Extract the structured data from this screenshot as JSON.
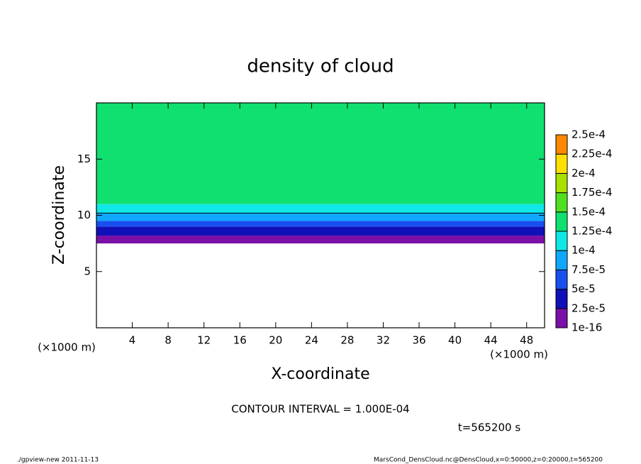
{
  "chart_data": {
    "type": "contour",
    "title": "density of cloud",
    "x_label": "X-coordinate",
    "y_label": "Z-coordinate",
    "x_unit": "(×1000 m)",
    "y_unit": "(×1000 m)",
    "xlim": [
      0,
      50
    ],
    "xticks": [
      4,
      8,
      12,
      16,
      20,
      24,
      28,
      32,
      36,
      40,
      44,
      48
    ],
    "ylim": [
      0,
      20
    ],
    "yticks": [
      5,
      10,
      15
    ],
    "field_z": [
      7.5,
      8.2,
      9,
      9.5,
      10.2,
      11
    ],
    "field_values": [
      1e-05,
      3e-05,
      6e-05,
      8.5e-05,
      0.00011,
      0.00014
    ],
    "contour_interval": 0.0001,
    "contour_text": "CONTOUR INTERVAL = 1.000E-04",
    "colorbar": {
      "levels": [
        {
          "value": 1e-16,
          "label": "1e-16"
        },
        {
          "value": 2.5e-05,
          "label": "2.5e-5"
        },
        {
          "value": 5e-05,
          "label": "5e-5"
        },
        {
          "value": 7.5e-05,
          "label": "7.5e-5"
        },
        {
          "value": 0.0001,
          "label": "1e-4"
        },
        {
          "value": 0.000125,
          "label": "1.25e-4"
        },
        {
          "value": 0.00015,
          "label": "1.5e-4"
        },
        {
          "value": 0.000175,
          "label": "1.75e-4"
        },
        {
          "value": 0.0002,
          "label": "2e-4"
        },
        {
          "value": 0.000225,
          "label": "2.25e-4"
        },
        {
          "value": 0.00025,
          "label": "2.5e-4"
        }
      ],
      "colors": [
        "#7a10a8",
        "#1010b8",
        "#1850f0",
        "#10a8ff",
        "#10e8e8",
        "#10e070",
        "#50e020",
        "#a8e000",
        "#ffe000",
        "#ff8800",
        "#ff3030",
        "#ff8a8a"
      ]
    },
    "time_text": "t=565200 s",
    "footer_left": "./gpview-new   2011-11-13",
    "footer_right": "MarsCond_DensCloud.nc@DensCloud,x=0:50000,z=0:20000,t=565200"
  }
}
